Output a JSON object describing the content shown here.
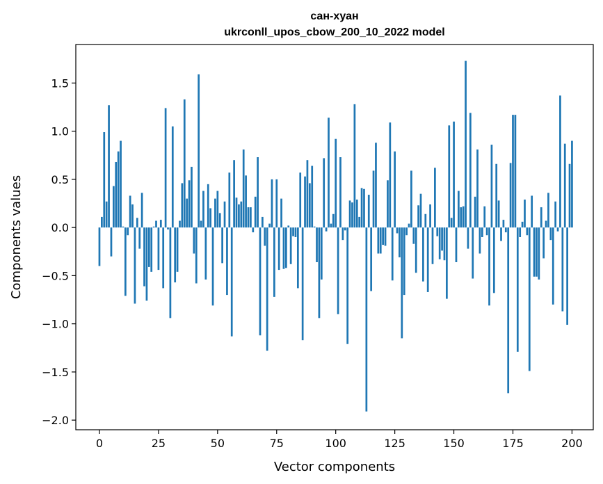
{
  "chart_data": {
    "type": "bar",
    "title": "сан-хуан",
    "subtitle": "ukrconll_upos_cbow_200_10_2022 model",
    "xlabel": "Vector components",
    "ylabel": "Components values",
    "xlim": [
      -10,
      209
    ],
    "ylim": [
      -2.1,
      1.9
    ],
    "x_ticks": [
      0,
      25,
      50,
      75,
      100,
      125,
      150,
      175,
      200
    ],
    "y_ticks": [
      -2.0,
      -1.5,
      -1.0,
      -0.5,
      0.0,
      0.5,
      1.0,
      1.5
    ],
    "x_tick_labels": [
      "0",
      "25",
      "50",
      "75",
      "100",
      "125",
      "150",
      "175",
      "200"
    ],
    "y_tick_labels": [
      "−2.0",
      "−1.5",
      "−1.0",
      "−0.5",
      "0.0",
      "0.5",
      "1.0",
      "1.5"
    ],
    "bar_color": "#1f77b4",
    "grid": false,
    "values": [
      -0.4,
      0.11,
      0.99,
      0.27,
      1.27,
      -0.3,
      0.43,
      0.68,
      0.79,
      0.9,
      0.01,
      -0.71,
      -0.08,
      0.33,
      0.24,
      -0.79,
      0.1,
      -0.22,
      0.36,
      -0.61,
      -0.76,
      -0.41,
      -0.46,
      0.01,
      0.07,
      -0.44,
      0.08,
      -0.63,
      1.24,
      -0.02,
      -0.94,
      1.05,
      -0.57,
      -0.46,
      0.07,
      0.46,
      1.33,
      0.3,
      0.49,
      0.63,
      -0.27,
      -0.58,
      1.59,
      0.07,
      0.38,
      -0.54,
      0.45,
      0.2,
      -0.81,
      0.3,
      0.38,
      0.15,
      -0.37,
      0.27,
      -0.7,
      0.57,
      -1.13,
      0.7,
      0.31,
      0.24,
      0.27,
      0.81,
      0.54,
      0.21,
      0.21,
      -0.05,
      0.32,
      0.73,
      -1.12,
      0.11,
      -0.19,
      -1.28,
      0.04,
      0.5,
      -0.72,
      0.5,
      -0.44,
      0.3,
      -0.43,
      -0.42,
      0.02,
      -0.38,
      -0.09,
      -0.1,
      -0.63,
      0.57,
      -1.17,
      0.53,
      0.7,
      0.46,
      0.64,
      0.01,
      -0.36,
      -0.94,
      -0.54,
      0.72,
      -0.04,
      1.14,
      0.04,
      0.14,
      0.92,
      -0.9,
      0.73,
      -0.13,
      -0.03,
      -1.21,
      0.28,
      0.26,
      1.28,
      0.29,
      0.11,
      0.41,
      0.4,
      -1.91,
      0.34,
      -0.66,
      0.59,
      0.88,
      -0.27,
      -0.27,
      -0.18,
      -0.19,
      0.49,
      1.09,
      -0.55,
      0.79,
      -0.06,
      -0.31,
      -1.15,
      -0.7,
      -0.08,
      0.04,
      0.59,
      -0.17,
      -0.47,
      0.23,
      0.35,
      -0.56,
      0.14,
      -0.67,
      0.24,
      -0.38,
      0.62,
      -0.09,
      -0.33,
      -0.24,
      -0.34,
      -0.74,
      1.06,
      0.1,
      1.1,
      -0.36,
      0.38,
      0.21,
      0.22,
      1.73,
      -0.22,
      1.19,
      -0.53,
      0.32,
      0.81,
      -0.27,
      -0.1,
      0.22,
      -0.08,
      -0.81,
      0.86,
      -0.68,
      0.66,
      0.28,
      -0.14,
      0.08,
      -0.05,
      -1.72,
      0.67,
      1.17,
      1.17,
      -1.29,
      -0.1,
      0.06,
      0.29,
      -0.08,
      -1.49,
      0.33,
      -0.51,
      -0.51,
      -0.54,
      0.21,
      -0.32,
      0.07,
      0.36,
      -0.13,
      -0.8,
      0.27,
      -0.04,
      1.37,
      -0.87,
      0.87,
      -1.01,
      0.66,
      0.9
    ]
  }
}
